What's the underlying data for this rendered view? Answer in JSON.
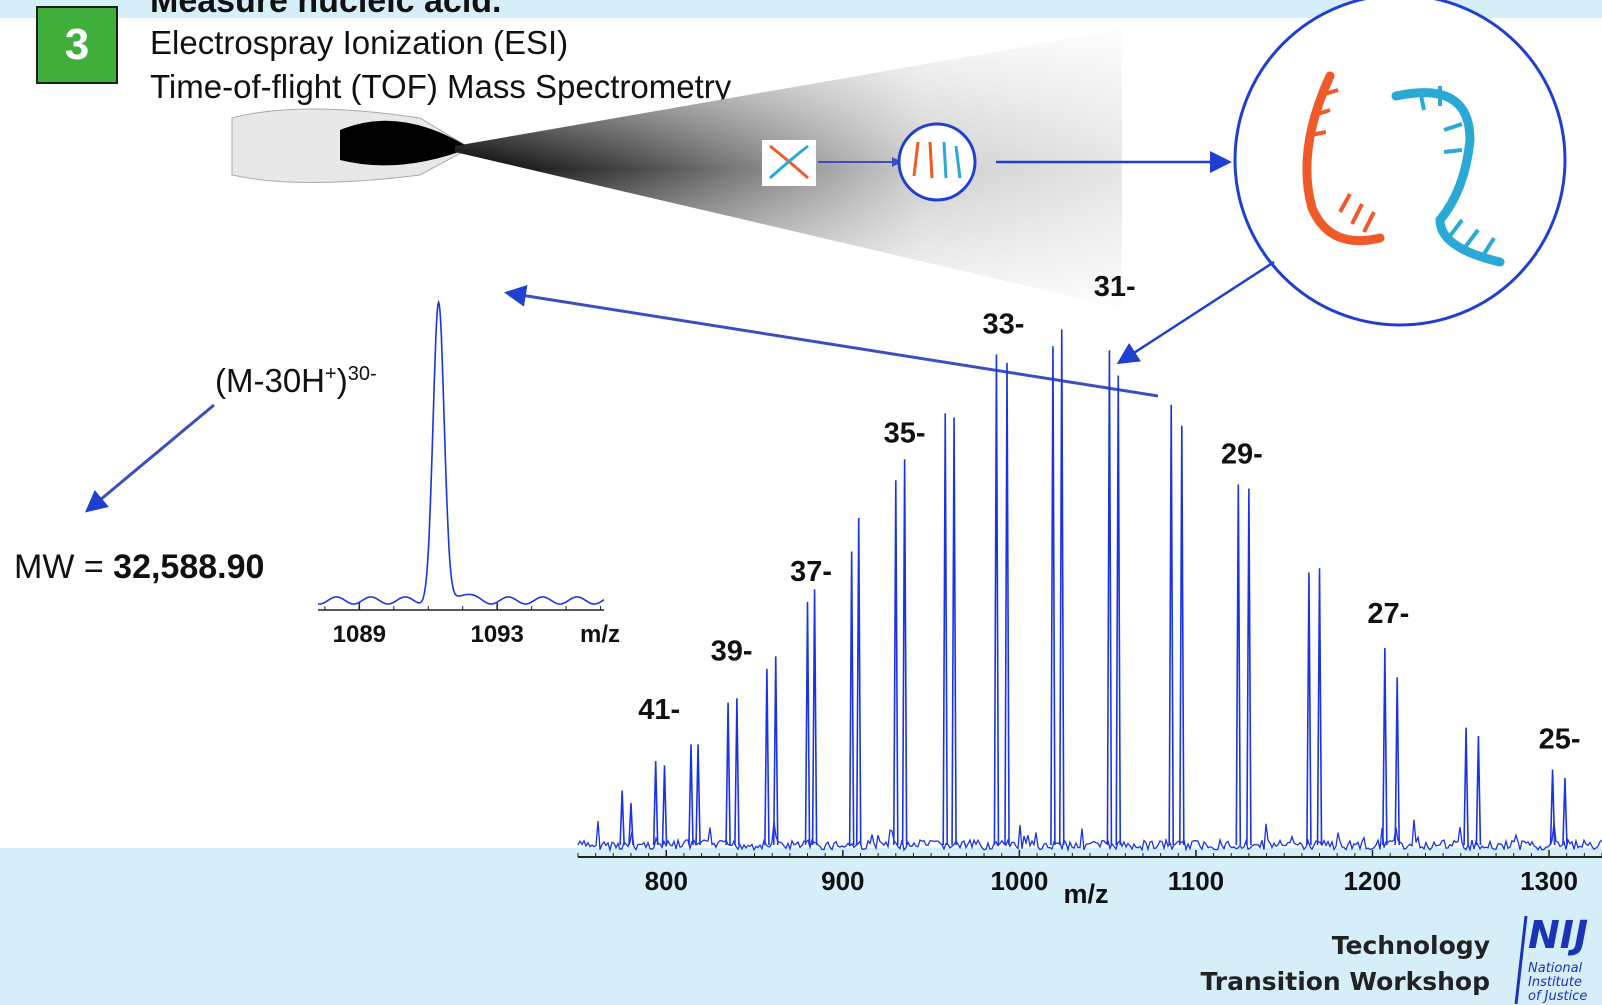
{
  "header": {
    "step_number": "3",
    "title": "Measure nucleic acid.",
    "subtitle_lines": [
      "Electrospray Ionization (ESI)",
      "Time-of-flight (TOF) Mass Spectrometry"
    ]
  },
  "ion_label": {
    "base": "(M-30H",
    "charge_sup": "+",
    "close": ")",
    "state_sup": "30-"
  },
  "molecular_weight": {
    "prefix": "MW = ",
    "value": "32,588.90"
  },
  "footer": {
    "line1": "Technology",
    "line2": "Transition Workshop",
    "logo_text": "NIJ",
    "logo_sub": [
      "National",
      "Institute",
      "of Justice"
    ]
  },
  "colors": {
    "accent_green": "#3fae3a",
    "spectrum_blue": "#1a33e6",
    "arrow_blue": "#3a4fbf",
    "band": "#d6eef7",
    "strand_orange": "#f05a28",
    "strand_cyan": "#29a9d6"
  },
  "chart_data": [
    {
      "type": "line",
      "name": "ESI-TOF mass spectrum",
      "xlabel": "m/z",
      "xticks": [
        800,
        900,
        1000,
        1100,
        1200,
        1300
      ],
      "xlim": [
        750,
        1330
      ],
      "charge_labels": [
        {
          "label": "41-",
          "x": 796
        },
        {
          "label": "39-",
          "x": 837
        },
        {
          "label": "37-",
          "x": 882
        },
        {
          "label": "35-",
          "x": 935
        },
        {
          "label": "33-",
          "x": 991
        },
        {
          "label": "31-",
          "x": 1054
        },
        {
          "label": "29-",
          "x": 1126
        },
        {
          "label": "27-",
          "x": 1209
        },
        {
          "label": "25-",
          "x": 1306
        }
      ],
      "peaks": [
        {
          "x": 775,
          "y": 0.13
        },
        {
          "x": 780,
          "y": 0.1
        },
        {
          "x": 794,
          "y": 0.2
        },
        {
          "x": 799,
          "y": 0.19
        },
        {
          "x": 814,
          "y": 0.24
        },
        {
          "x": 818,
          "y": 0.24
        },
        {
          "x": 835,
          "y": 0.34
        },
        {
          "x": 840,
          "y": 0.35
        },
        {
          "x": 857,
          "y": 0.42
        },
        {
          "x": 862,
          "y": 0.45
        },
        {
          "x": 880,
          "y": 0.58
        },
        {
          "x": 884,
          "y": 0.61
        },
        {
          "x": 905,
          "y": 0.7
        },
        {
          "x": 909,
          "y": 0.78
        },
        {
          "x": 930,
          "y": 0.87
        },
        {
          "x": 935,
          "y": 0.92
        },
        {
          "x": 958,
          "y": 1.03
        },
        {
          "x": 963,
          "y": 1.02
        },
        {
          "x": 987,
          "y": 1.17
        },
        {
          "x": 993,
          "y": 1.15
        },
        {
          "x": 1019,
          "y": 1.19
        },
        {
          "x": 1024,
          "y": 1.23
        },
        {
          "x": 1051,
          "y": 1.18
        },
        {
          "x": 1056,
          "y": 1.12
        },
        {
          "x": 1086,
          "y": 1.05
        },
        {
          "x": 1092,
          "y": 1.0
        },
        {
          "x": 1124,
          "y": 0.86
        },
        {
          "x": 1130,
          "y": 0.85
        },
        {
          "x": 1164,
          "y": 0.65
        },
        {
          "x": 1170,
          "y": 0.66
        },
        {
          "x": 1207,
          "y": 0.47
        },
        {
          "x": 1214,
          "y": 0.4
        },
        {
          "x": 1253,
          "y": 0.28
        },
        {
          "x": 1260,
          "y": 0.26
        },
        {
          "x": 1302,
          "y": 0.18
        },
        {
          "x": 1309,
          "y": 0.16
        }
      ],
      "ylim": [
        0,
        1.3
      ]
    },
    {
      "type": "line",
      "name": "zoomed peak (M-30H+)30-",
      "xlabel": "m/z",
      "xticks": [
        1089,
        1093
      ],
      "xlim": [
        1087.8,
        1096.1
      ],
      "peak": {
        "x": 1091.3,
        "y": 1.0
      },
      "ylim": [
        0,
        1.05
      ]
    }
  ]
}
